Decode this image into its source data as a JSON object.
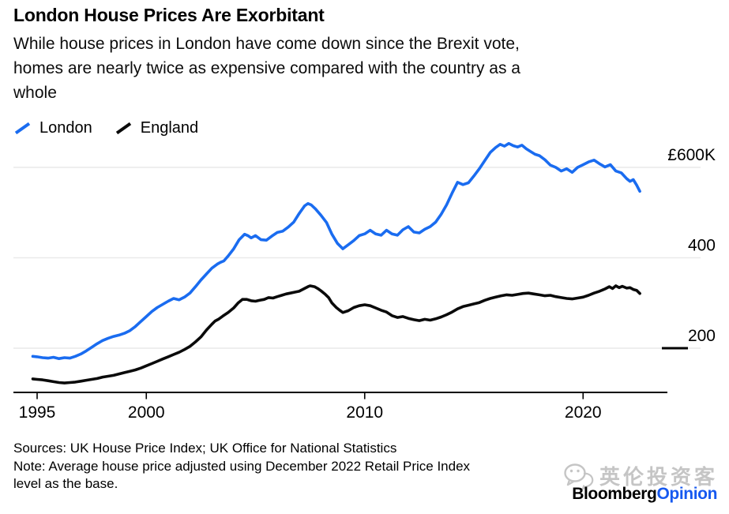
{
  "header": {
    "title": "London House Prices Are Exorbitant",
    "subtitle_lines": [
      "While house prices in London have come down since the Brexit vote,",
      "homes are nearly twice as expensive compared with the country as a",
      "whole"
    ]
  },
  "legend": [
    {
      "label": "London",
      "color": "#1a6cf0"
    },
    {
      "label": "England",
      "color": "#0a0a0a"
    }
  ],
  "footer": {
    "sources": "Sources: UK House Price Index; UK Office for National Statistics",
    "note_lines": [
      "Note: Average house price adjusted using December 2022 Retail Price Index",
      "level as the base."
    ]
  },
  "branding": {
    "bloomberg": "Bloomberg",
    "opinion": "Opinion",
    "bloomberg_color": "#000000",
    "opinion_color": "#1659f0",
    "watermark_text": "英伦投资客",
    "watermark_color": "#c5c5c5"
  },
  "chart_data": {
    "type": "line",
    "title": "London House Prices Are Exorbitant",
    "unit": "GBP thousands, December 2022 prices",
    "grid": "horizontal",
    "legend_position": "top-left",
    "x_axis": {
      "range": [
        1994.8,
        2023.2
      ],
      "ticks": [
        1995,
        2000,
        2010,
        2020
      ]
    },
    "y_axis": {
      "ticks": [
        {
          "value": 600,
          "label": "£600K"
        },
        {
          "value": 400,
          "label": "400"
        },
        {
          "value": 200,
          "label": "200"
        }
      ]
    },
    "series": [
      {
        "name": "London",
        "color": "#1a6cf0",
        "points": [
          [
            1994.8,
            182
          ],
          [
            1995,
            181
          ],
          [
            1995.25,
            179
          ],
          [
            1995.5,
            178
          ],
          [
            1995.75,
            180
          ],
          [
            1996,
            177
          ],
          [
            1996.25,
            179
          ],
          [
            1996.5,
            178
          ],
          [
            1996.75,
            182
          ],
          [
            1997,
            187
          ],
          [
            1997.25,
            194
          ],
          [
            1997.5,
            202
          ],
          [
            1997.75,
            210
          ],
          [
            1998,
            217
          ],
          [
            1998.25,
            222
          ],
          [
            1998.5,
            226
          ],
          [
            1998.75,
            229
          ],
          [
            1999,
            233
          ],
          [
            1999.25,
            239
          ],
          [
            1999.5,
            248
          ],
          [
            1999.75,
            259
          ],
          [
            2000,
            270
          ],
          [
            2000.25,
            281
          ],
          [
            2000.5,
            290
          ],
          [
            2000.75,
            297
          ],
          [
            2001,
            304
          ],
          [
            2001.25,
            310
          ],
          [
            2001.5,
            307
          ],
          [
            2001.75,
            313
          ],
          [
            2002,
            322
          ],
          [
            2002.25,
            336
          ],
          [
            2002.5,
            351
          ],
          [
            2002.75,
            364
          ],
          [
            2003,
            377
          ],
          [
            2003.25,
            386
          ],
          [
            2003.4,
            390
          ],
          [
            2003.55,
            393
          ],
          [
            2003.75,
            404
          ],
          [
            2004,
            420
          ],
          [
            2004.25,
            440
          ],
          [
            2004.5,
            452
          ],
          [
            2004.65,
            449
          ],
          [
            2004.8,
            444
          ],
          [
            2005,
            449
          ],
          [
            2005.25,
            440
          ],
          [
            2005.5,
            439
          ],
          [
            2005.75,
            448
          ],
          [
            2006,
            456
          ],
          [
            2006.25,
            459
          ],
          [
            2006.5,
            468
          ],
          [
            2006.75,
            479
          ],
          [
            2007,
            498
          ],
          [
            2007.25,
            515
          ],
          [
            2007.4,
            520
          ],
          [
            2007.55,
            517
          ],
          [
            2007.75,
            508
          ],
          [
            2008,
            494
          ],
          [
            2008.25,
            478
          ],
          [
            2008.5,
            452
          ],
          [
            2008.75,
            432
          ],
          [
            2009,
            420
          ],
          [
            2009.25,
            429
          ],
          [
            2009.5,
            438
          ],
          [
            2009.75,
            449
          ],
          [
            2010,
            453
          ],
          [
            2010.25,
            461
          ],
          [
            2010.5,
            453
          ],
          [
            2010.75,
            450
          ],
          [
            2011,
            461
          ],
          [
            2011.25,
            453
          ],
          [
            2011.5,
            450
          ],
          [
            2011.75,
            462
          ],
          [
            2012,
            469
          ],
          [
            2012.25,
            457
          ],
          [
            2012.5,
            455
          ],
          [
            2012.75,
            463
          ],
          [
            2013,
            469
          ],
          [
            2013.25,
            479
          ],
          [
            2013.5,
            496
          ],
          [
            2013.75,
            517
          ],
          [
            2014,
            543
          ],
          [
            2014.25,
            567
          ],
          [
            2014.5,
            562
          ],
          [
            2014.75,
            566
          ],
          [
            2015,
            581
          ],
          [
            2015.25,
            597
          ],
          [
            2015.5,
            615
          ],
          [
            2015.75,
            633
          ],
          [
            2016,
            644
          ],
          [
            2016.2,
            651
          ],
          [
            2016.4,
            647
          ],
          [
            2016.6,
            653
          ],
          [
            2016.8,
            648
          ],
          [
            2017,
            645
          ],
          [
            2017.2,
            649
          ],
          [
            2017.4,
            641
          ],
          [
            2017.6,
            635
          ],
          [
            2017.8,
            629
          ],
          [
            2018,
            626
          ],
          [
            2018.25,
            617
          ],
          [
            2018.5,
            605
          ],
          [
            2018.75,
            600
          ],
          [
            2019,
            592
          ],
          [
            2019.25,
            597
          ],
          [
            2019.5,
            589
          ],
          [
            2019.75,
            600
          ],
          [
            2020,
            606
          ],
          [
            2020.25,
            612
          ],
          [
            2020.5,
            616
          ],
          [
            2020.75,
            608
          ],
          [
            2021,
            601
          ],
          [
            2021.25,
            606
          ],
          [
            2021.5,
            592
          ],
          [
            2021.75,
            588
          ],
          [
            2022,
            575
          ],
          [
            2022.15,
            569
          ],
          [
            2022.3,
            573
          ],
          [
            2022.45,
            561
          ],
          [
            2022.6,
            547
          ]
        ]
      },
      {
        "name": "England",
        "color": "#0a0a0a",
        "points": [
          [
            1994.8,
            132
          ],
          [
            1995,
            131
          ],
          [
            1995.25,
            130
          ],
          [
            1995.5,
            128
          ],
          [
            1995.75,
            126
          ],
          [
            1996,
            124
          ],
          [
            1996.25,
            123
          ],
          [
            1996.5,
            124
          ],
          [
            1996.75,
            125
          ],
          [
            1997,
            127
          ],
          [
            1997.25,
            129
          ],
          [
            1997.5,
            131
          ],
          [
            1997.75,
            133
          ],
          [
            1998,
            136
          ],
          [
            1998.25,
            138
          ],
          [
            1998.5,
            140
          ],
          [
            1998.75,
            143
          ],
          [
            1999,
            146
          ],
          [
            1999.25,
            149
          ],
          [
            1999.5,
            152
          ],
          [
            1999.75,
            156
          ],
          [
            2000,
            161
          ],
          [
            2000.25,
            166
          ],
          [
            2000.5,
            171
          ],
          [
            2000.75,
            176
          ],
          [
            2001,
            181
          ],
          [
            2001.25,
            186
          ],
          [
            2001.5,
            191
          ],
          [
            2001.75,
            197
          ],
          [
            2002,
            204
          ],
          [
            2002.25,
            214
          ],
          [
            2002.5,
            225
          ],
          [
            2002.75,
            240
          ],
          [
            2003,
            253
          ],
          [
            2003.15,
            260
          ],
          [
            2003.3,
            264
          ],
          [
            2003.5,
            271
          ],
          [
            2003.75,
            279
          ],
          [
            2004,
            289
          ],
          [
            2004.2,
            300
          ],
          [
            2004.4,
            308
          ],
          [
            2004.6,
            308
          ],
          [
            2004.8,
            305
          ],
          [
            2005,
            304
          ],
          [
            2005.2,
            306
          ],
          [
            2005.4,
            308
          ],
          [
            2005.6,
            312
          ],
          [
            2005.8,
            311
          ],
          [
            2006,
            314
          ],
          [
            2006.2,
            317
          ],
          [
            2006.4,
            320
          ],
          [
            2006.6,
            322
          ],
          [
            2006.8,
            324
          ],
          [
            2007,
            326
          ],
          [
            2007.2,
            331
          ],
          [
            2007.4,
            336
          ],
          [
            2007.5,
            338
          ],
          [
            2007.7,
            336
          ],
          [
            2007.85,
            332
          ],
          [
            2008,
            327
          ],
          [
            2008.2,
            319
          ],
          [
            2008.35,
            312
          ],
          [
            2008.5,
            300
          ],
          [
            2008.7,
            290
          ],
          [
            2008.85,
            284
          ],
          [
            2009,
            279
          ],
          [
            2009.25,
            283
          ],
          [
            2009.5,
            290
          ],
          [
            2009.75,
            294
          ],
          [
            2010,
            296
          ],
          [
            2010.25,
            294
          ],
          [
            2010.5,
            289
          ],
          [
            2010.75,
            284
          ],
          [
            2011,
            280
          ],
          [
            2011.25,
            272
          ],
          [
            2011.5,
            268
          ],
          [
            2011.75,
            270
          ],
          [
            2012,
            266
          ],
          [
            2012.25,
            263
          ],
          [
            2012.5,
            261
          ],
          [
            2012.75,
            264
          ],
          [
            2013,
            262
          ],
          [
            2013.25,
            265
          ],
          [
            2013.5,
            269
          ],
          [
            2013.75,
            274
          ],
          [
            2014,
            280
          ],
          [
            2014.25,
            287
          ],
          [
            2014.5,
            292
          ],
          [
            2014.75,
            295
          ],
          [
            2015,
            298
          ],
          [
            2015.25,
            301
          ],
          [
            2015.5,
            306
          ],
          [
            2015.75,
            310
          ],
          [
            2016,
            313
          ],
          [
            2016.25,
            316
          ],
          [
            2016.5,
            318
          ],
          [
            2016.75,
            317
          ],
          [
            2017,
            319
          ],
          [
            2017.25,
            321
          ],
          [
            2017.5,
            322
          ],
          [
            2017.75,
            320
          ],
          [
            2018,
            318
          ],
          [
            2018.25,
            316
          ],
          [
            2018.5,
            317
          ],
          [
            2018.75,
            314
          ],
          [
            2019,
            312
          ],
          [
            2019.25,
            310
          ],
          [
            2019.5,
            309
          ],
          [
            2019.75,
            311
          ],
          [
            2020,
            313
          ],
          [
            2020.25,
            317
          ],
          [
            2020.5,
            322
          ],
          [
            2020.75,
            326
          ],
          [
            2021,
            331
          ],
          [
            2021.2,
            336
          ],
          [
            2021.35,
            332
          ],
          [
            2021.5,
            338
          ],
          [
            2021.65,
            334
          ],
          [
            2021.8,
            337
          ],
          [
            2022,
            333
          ],
          [
            2022.15,
            334
          ],
          [
            2022.3,
            330
          ],
          [
            2022.45,
            328
          ],
          [
            2022.6,
            321
          ]
        ]
      }
    ]
  }
}
